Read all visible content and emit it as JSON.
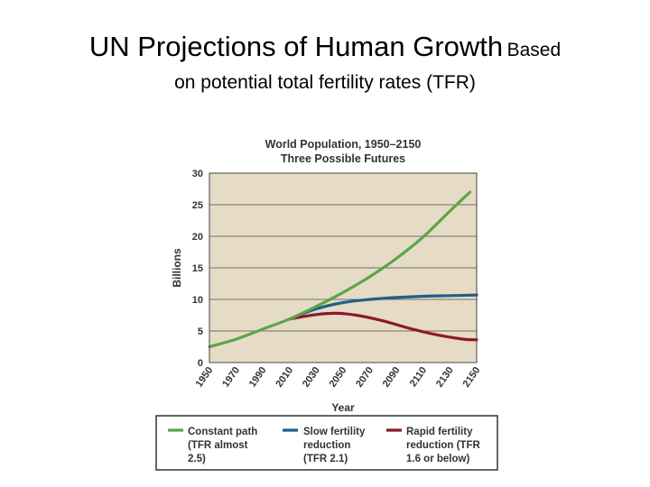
{
  "slide": {
    "title_main": "UN Projections of Human Growth",
    "title_tail": "Based",
    "subtitle": "on potential total fertility rates (TFR)"
  },
  "chart_data": {
    "type": "line",
    "title": "World Population, 1950–2150",
    "subtitle": "Three Possible Futures",
    "xlabel": "Year",
    "ylabel": "Billions",
    "xlim": [
      1950,
      2150
    ],
    "ylim": [
      0,
      30
    ],
    "xticks": [
      "1950",
      "1970",
      "1990",
      "2010",
      "2030",
      "2050",
      "2070",
      "2090",
      "2110",
      "2130",
      "2150"
    ],
    "yticks": [
      "0",
      "5",
      "10",
      "15",
      "20",
      "25",
      "30"
    ],
    "grid": true,
    "legend_position": "bottom",
    "colors": {
      "plot_bg": "#e6dcc6",
      "grid": "#4a4a4a",
      "frame": "#444444"
    },
    "series": [
      {
        "name": "Constant path (TFR almost 2.5)",
        "color": "#5aa54a",
        "x": [
          1950,
          1970,
          1990,
          2010,
          2030,
          2050,
          2070,
          2090,
          2110,
          2130,
          2145
        ],
        "y": [
          2.5,
          3.7,
          5.3,
          6.9,
          8.9,
          11.1,
          13.6,
          16.5,
          19.9,
          24.0,
          27.0
        ]
      },
      {
        "name": "Slow fertility reduction (TFR 2.1)",
        "color": "#1f5f8b",
        "x": [
          2010,
          2030,
          2050,
          2070,
          2090,
          2110,
          2130,
          2150
        ],
        "y": [
          6.9,
          8.5,
          9.5,
          10.0,
          10.3,
          10.5,
          10.6,
          10.7
        ]
      },
      {
        "name": "Rapid fertility reduction (TFR 1.6 or below)",
        "color": "#8b1a2b",
        "x": [
          2010,
          2030,
          2045,
          2060,
          2080,
          2100,
          2120,
          2140,
          2150
        ],
        "y": [
          6.9,
          7.6,
          7.8,
          7.5,
          6.6,
          5.4,
          4.4,
          3.7,
          3.6
        ]
      }
    ],
    "legend": [
      {
        "lines": [
          "Constant path",
          "(TFR almost",
          "2.5)"
        ],
        "color": "#5aa54a"
      },
      {
        "lines": [
          "Slow fertility",
          "reduction",
          "(TFR 2.1)"
        ],
        "color": "#1f5f8b"
      },
      {
        "lines": [
          "Rapid fertility",
          "reduction (TFR",
          "1.6 or below)"
        ],
        "color": "#8b1a2b"
      }
    ]
  }
}
